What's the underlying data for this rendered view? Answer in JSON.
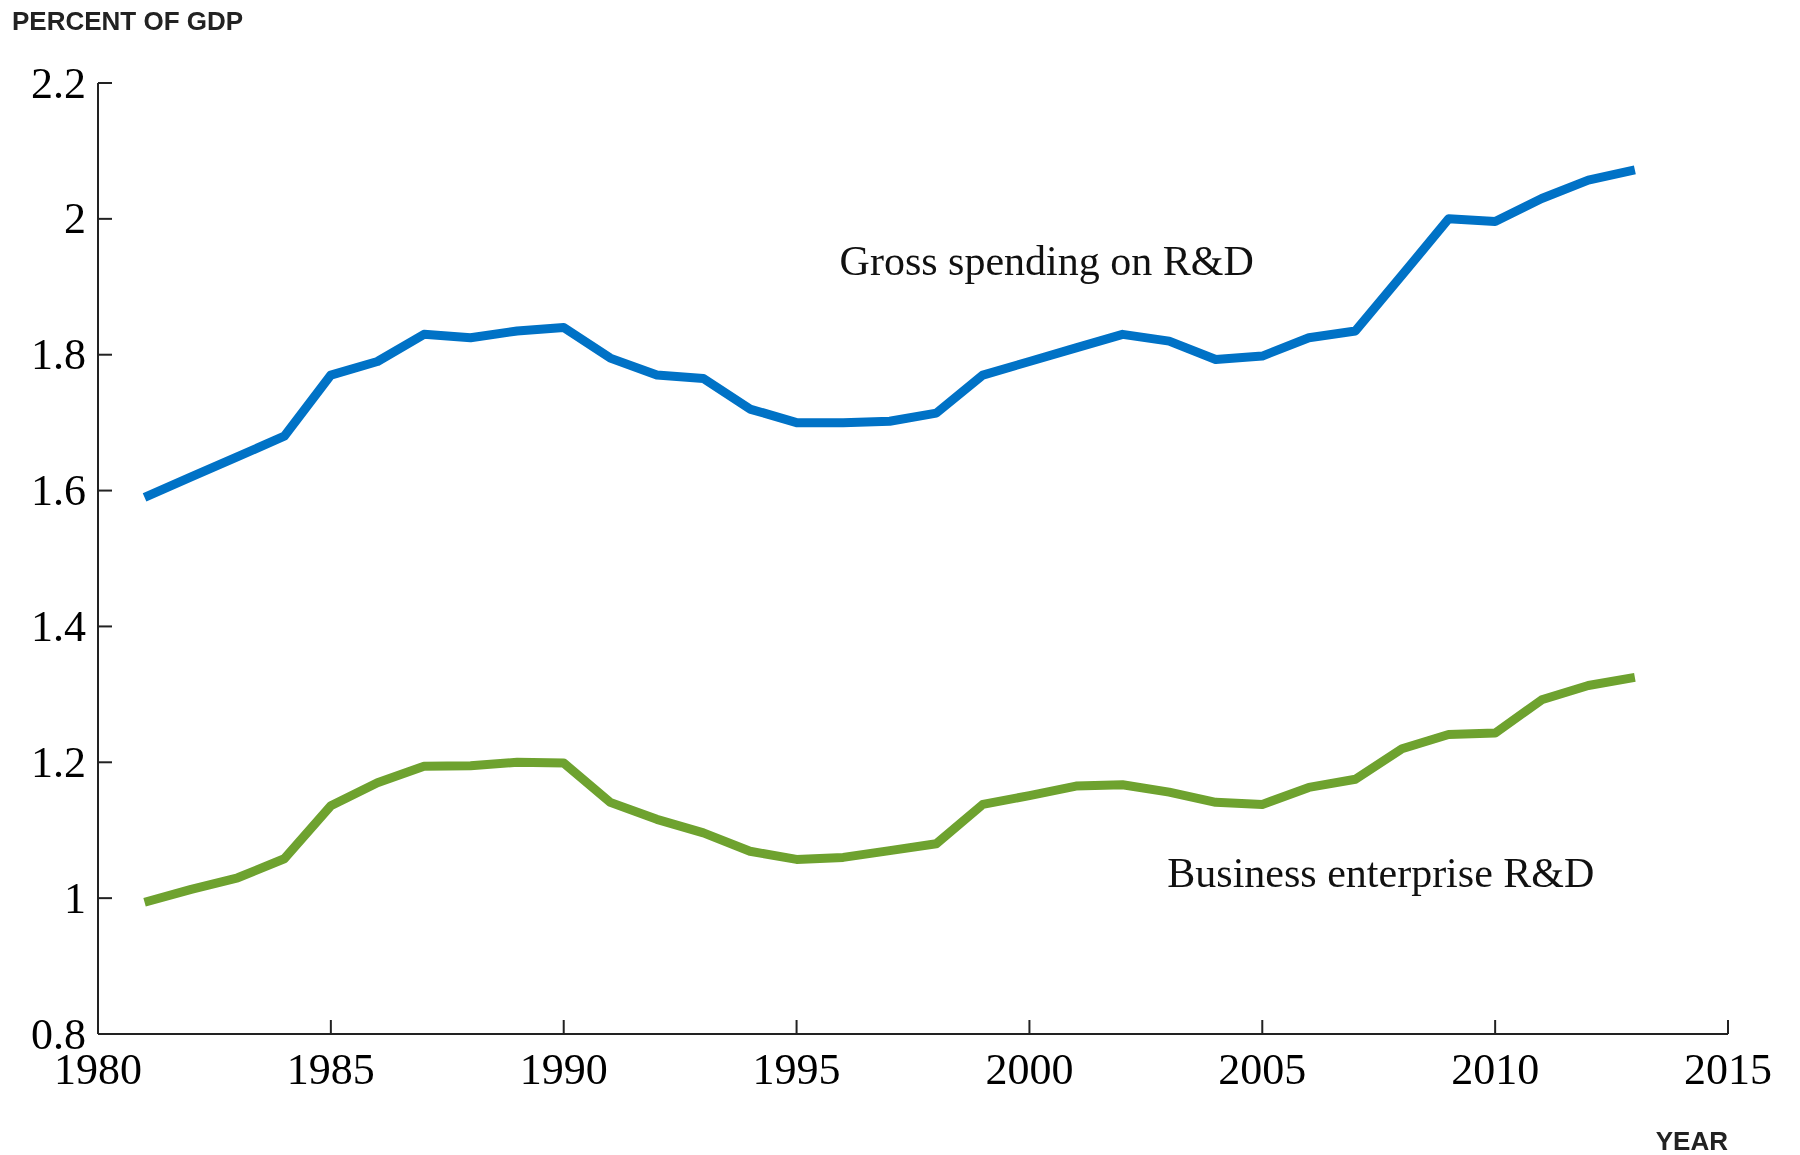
{
  "chart_data": {
    "type": "line",
    "ylabel": "PERCENT OF GDP",
    "xlabel": "YEAR",
    "x": [
      1981,
      1982,
      1983,
      1984,
      1985,
      1986,
      1987,
      1988,
      1989,
      1990,
      1991,
      1992,
      1993,
      1994,
      1995,
      1996,
      1997,
      1998,
      1999,
      2000,
      2001,
      2002,
      2003,
      2004,
      2005,
      2006,
      2007,
      2008,
      2009,
      2010,
      2011,
      2012,
      2013
    ],
    "series": [
      {
        "name": "Gross spending on R&D",
        "color": "#0072c6",
        "values": [
          1.59,
          1.62,
          1.65,
          1.68,
          1.77,
          1.79,
          1.83,
          1.825,
          1.835,
          1.84,
          1.795,
          1.77,
          1.765,
          1.72,
          1.7,
          1.7,
          1.702,
          1.714,
          1.77,
          1.79,
          1.81,
          1.83,
          1.82,
          1.793,
          1.798,
          1.825,
          1.835,
          1.917,
          2.0,
          1.996,
          2.03,
          2.057,
          2.072
        ]
      },
      {
        "name": "Business enterprise R&D",
        "color": "#6ea22f",
        "values": [
          0.994,
          1.013,
          1.03,
          1.058,
          1.136,
          1.17,
          1.194,
          1.195,
          1.2,
          1.199,
          1.141,
          1.116,
          1.096,
          1.069,
          1.057,
          1.06,
          1.07,
          1.08,
          1.138,
          1.151,
          1.165,
          1.167,
          1.156,
          1.141,
          1.138,
          1.163,
          1.175,
          1.22,
          1.241,
          1.243,
          1.292,
          1.313,
          1.325
        ]
      }
    ],
    "xlim": [
      1980,
      2015
    ],
    "xticks": [
      1980,
      1985,
      1990,
      1995,
      2000,
      2005,
      2010,
      2015
    ],
    "ylim": [
      0.8,
      2.2
    ],
    "yticks": [
      0.8,
      1,
      1.2,
      1.4,
      1.6,
      1.8,
      2,
      2.2
    ],
    "grid": false,
    "legend": false,
    "marker": "none",
    "line_style": "solid"
  }
}
